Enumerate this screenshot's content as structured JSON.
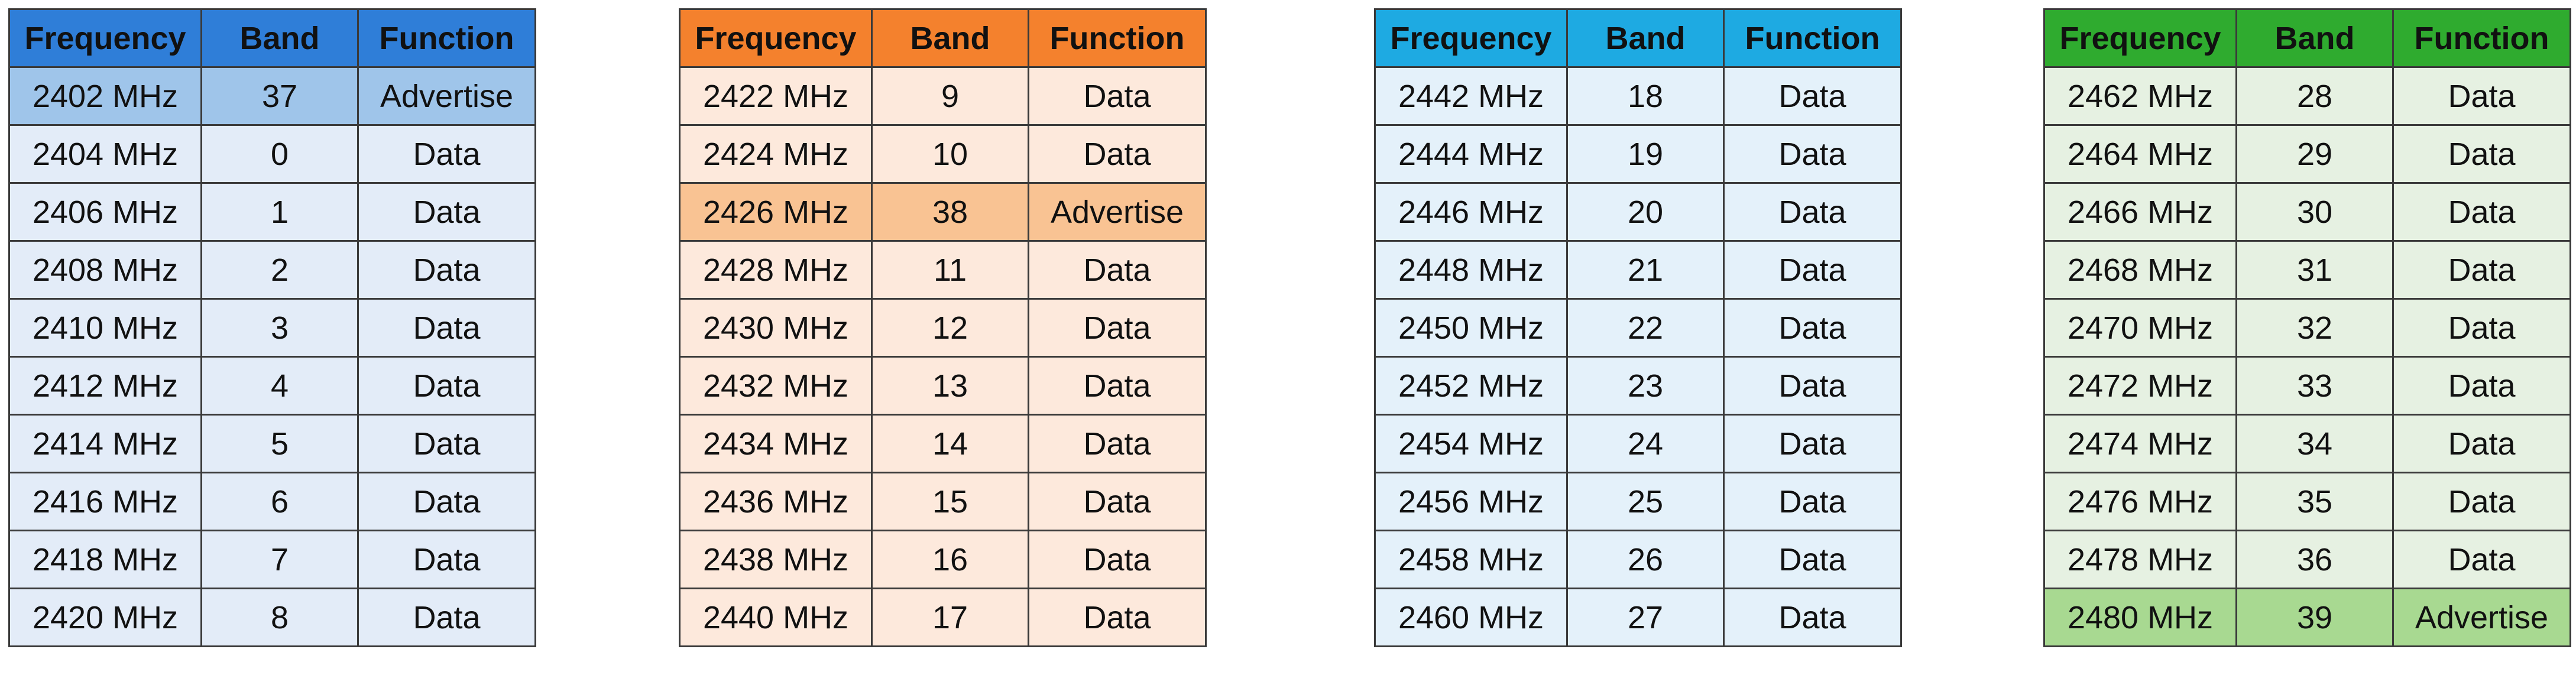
{
  "tables": [
    {
      "header": [
        "Frequency",
        "Band",
        "Function"
      ],
      "header_color": "#2f7ed8",
      "row_color": "#e3ecf8",
      "highlight_color": "#9fc5ea",
      "highlight_row": 0,
      "rows": [
        [
          "2402 MHz",
          "37",
          "Advertise"
        ],
        [
          "2404 MHz",
          "0",
          "Data"
        ],
        [
          "2406 MHz",
          "1",
          "Data"
        ],
        [
          "2408 MHz",
          "2",
          "Data"
        ],
        [
          "2410 MHz",
          "3",
          "Data"
        ],
        [
          "2412 MHz",
          "4",
          "Data"
        ],
        [
          "2414 MHz",
          "5",
          "Data"
        ],
        [
          "2416 MHz",
          "6",
          "Data"
        ],
        [
          "2418 MHz",
          "7",
          "Data"
        ],
        [
          "2420 MHz",
          "8",
          "Data"
        ]
      ]
    },
    {
      "header": [
        "Frequency",
        "Band",
        "Function"
      ],
      "header_color": "#f4812d",
      "row_color": "#fde9dc",
      "highlight_color": "#f9c393",
      "highlight_row": 2,
      "rows": [
        [
          "2422 MHz",
          "9",
          "Data"
        ],
        [
          "2424 MHz",
          "10",
          "Data"
        ],
        [
          "2426 MHz",
          "38",
          "Advertise"
        ],
        [
          "2428 MHz",
          "11",
          "Data"
        ],
        [
          "2430 MHz",
          "12",
          "Data"
        ],
        [
          "2432 MHz",
          "13",
          "Data"
        ],
        [
          "2434 MHz",
          "14",
          "Data"
        ],
        [
          "2436 MHz",
          "15",
          "Data"
        ],
        [
          "2438 MHz",
          "16",
          "Data"
        ],
        [
          "2440 MHz",
          "17",
          "Data"
        ]
      ]
    },
    {
      "header": [
        "Frequency",
        "Band",
        "Function"
      ],
      "header_color": "#1eaae2",
      "row_color": "#e4f1fa",
      "rows": [
        [
          "2442 MHz",
          "18",
          "Data"
        ],
        [
          "2444 MHz",
          "19",
          "Data"
        ],
        [
          "2446 MHz",
          "20",
          "Data"
        ],
        [
          "2448 MHz",
          "21",
          "Data"
        ],
        [
          "2450 MHz",
          "22",
          "Data"
        ],
        [
          "2452 MHz",
          "23",
          "Data"
        ],
        [
          "2454 MHz",
          "24",
          "Data"
        ],
        [
          "2456 MHz",
          "25",
          "Data"
        ],
        [
          "2458 MHz",
          "26",
          "Data"
        ],
        [
          "2460 MHz",
          "27",
          "Data"
        ]
      ]
    },
    {
      "header": [
        "Frequency",
        "Band",
        "Function"
      ],
      "header_color": "#2fab2f",
      "row_color": "#e6f1e2",
      "highlight_color": "#a8d991",
      "highlight_row": 9,
      "rows": [
        [
          "2462 MHz",
          "28",
          "Data"
        ],
        [
          "2464 MHz",
          "29",
          "Data"
        ],
        [
          "2466 MHz",
          "30",
          "Data"
        ],
        [
          "2468 MHz",
          "31",
          "Data"
        ],
        [
          "2470 MHz",
          "32",
          "Data"
        ],
        [
          "2472 MHz",
          "33",
          "Data"
        ],
        [
          "2474 MHz",
          "34",
          "Data"
        ],
        [
          "2476 MHz",
          "35",
          "Data"
        ],
        [
          "2478 MHz",
          "36",
          "Data"
        ],
        [
          "2480 MHz",
          "39",
          "Advertise"
        ]
      ]
    }
  ]
}
